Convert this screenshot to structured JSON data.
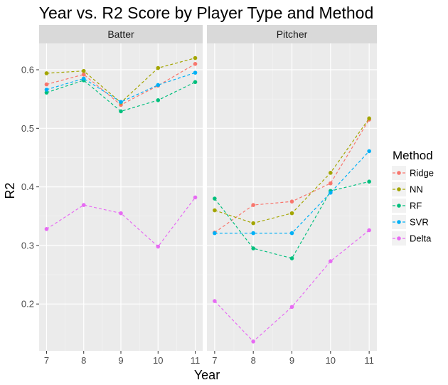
{
  "chart_data": {
    "type": "line",
    "title": "Year vs. R2 Score by Player Type and Method",
    "xlabel": "Year",
    "ylabel": "R2",
    "x": [
      7,
      8,
      9,
      10,
      11
    ],
    "xlim": [
      6.8,
      11.2
    ],
    "ylim": [
      0.12,
      0.645
    ],
    "yticks": [
      0.2,
      0.3,
      0.4,
      0.5,
      0.6
    ],
    "yticks_labels": [
      "0.2",
      "0.3",
      "0.4",
      "0.5",
      "0.6"
    ],
    "grid": true,
    "legend": {
      "title": "Method",
      "position": "right"
    },
    "series_styles": [
      {
        "name": "Ridge",
        "color": "#F8766D"
      },
      {
        "name": "NN",
        "color": "#A3A500"
      },
      {
        "name": "RF",
        "color": "#00BF7D"
      },
      {
        "name": "SVR",
        "color": "#00B0F6"
      },
      {
        "name": "Delta",
        "color": "#E76BF3"
      }
    ],
    "panels": [
      {
        "label": "Batter",
        "series": [
          {
            "name": "Ridge",
            "values": [
              0.575,
              0.592,
              0.54,
              0.573,
              0.61
            ]
          },
          {
            "name": "NN",
            "values": [
              0.594,
              0.598,
              0.544,
              0.603,
              0.62
            ]
          },
          {
            "name": "RF",
            "values": [
              0.561,
              0.582,
              0.529,
              0.548,
              0.579
            ]
          },
          {
            "name": "SVR",
            "values": [
              0.566,
              0.585,
              0.545,
              0.574,
              0.595
            ]
          },
          {
            "name": "Delta",
            "values": [
              0.328,
              0.369,
              0.355,
              0.298,
              0.382
            ]
          }
        ]
      },
      {
        "label": "Pitcher",
        "series": [
          {
            "name": "Ridge",
            "values": [
              0.322,
              0.369,
              0.375,
              0.406,
              0.515
            ]
          },
          {
            "name": "NN",
            "values": [
              0.36,
              0.338,
              0.355,
              0.424,
              0.517
            ]
          },
          {
            "name": "RF",
            "values": [
              0.38,
              0.295,
              0.278,
              0.393,
              0.409
            ]
          },
          {
            "name": "SVR",
            "values": [
              0.321,
              0.321,
              0.321,
              0.39,
              0.461
            ]
          },
          {
            "name": "Delta",
            "values": [
              0.205,
              0.136,
              0.195,
              0.273,
              0.326
            ]
          }
        ]
      }
    ]
  }
}
